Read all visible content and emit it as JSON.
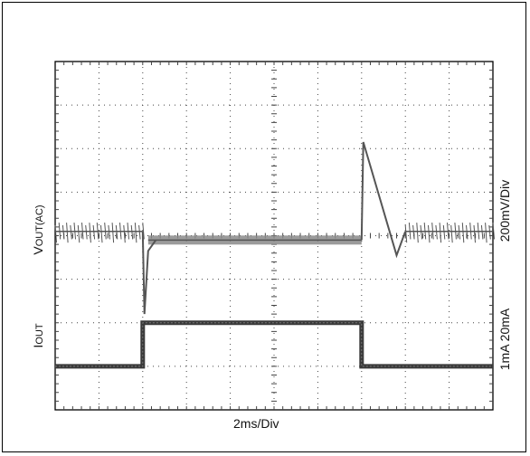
{
  "chart_data": {
    "type": "line",
    "title": "",
    "xlabel": "2ms/Div",
    "ylabel_left": {
      "vout_main": "V",
      "vout_sub": "OUT(AC)",
      "iout_main": "I",
      "iout_sub": "OUT"
    },
    "ylabel_right": [
      "200mV/Div",
      "1mA  20mA"
    ],
    "grid": true,
    "divisions": {
      "x": 10,
      "y": 8
    },
    "x_unit": "ms",
    "x_range": [
      0,
      20
    ],
    "step_times_ms": [
      4.0,
      14.0
    ],
    "series": [
      {
        "signal": "vout_ac",
        "unit": "mV",
        "points": [
          [
            0,
            0
          ],
          [
            4.0,
            0
          ],
          [
            4.08,
            -380
          ],
          [
            4.25,
            -90
          ],
          [
            4.6,
            -40
          ],
          [
            14.0,
            -40
          ],
          [
            14.08,
            410
          ],
          [
            15.6,
            -110
          ],
          [
            16.0,
            0
          ],
          [
            20,
            0
          ]
        ],
        "ripple_mv": 40
      },
      {
        "signal": "iout",
        "unit": "mA",
        "points": [
          [
            0,
            1
          ],
          [
            4.0,
            1
          ],
          [
            4.0,
            20
          ],
          [
            14.0,
            20
          ],
          [
            14.0,
            1
          ],
          [
            20,
            1
          ]
        ]
      }
    ]
  },
  "colors": {
    "trace": "#555555",
    "grid": "#444444",
    "frame": "#000000"
  }
}
